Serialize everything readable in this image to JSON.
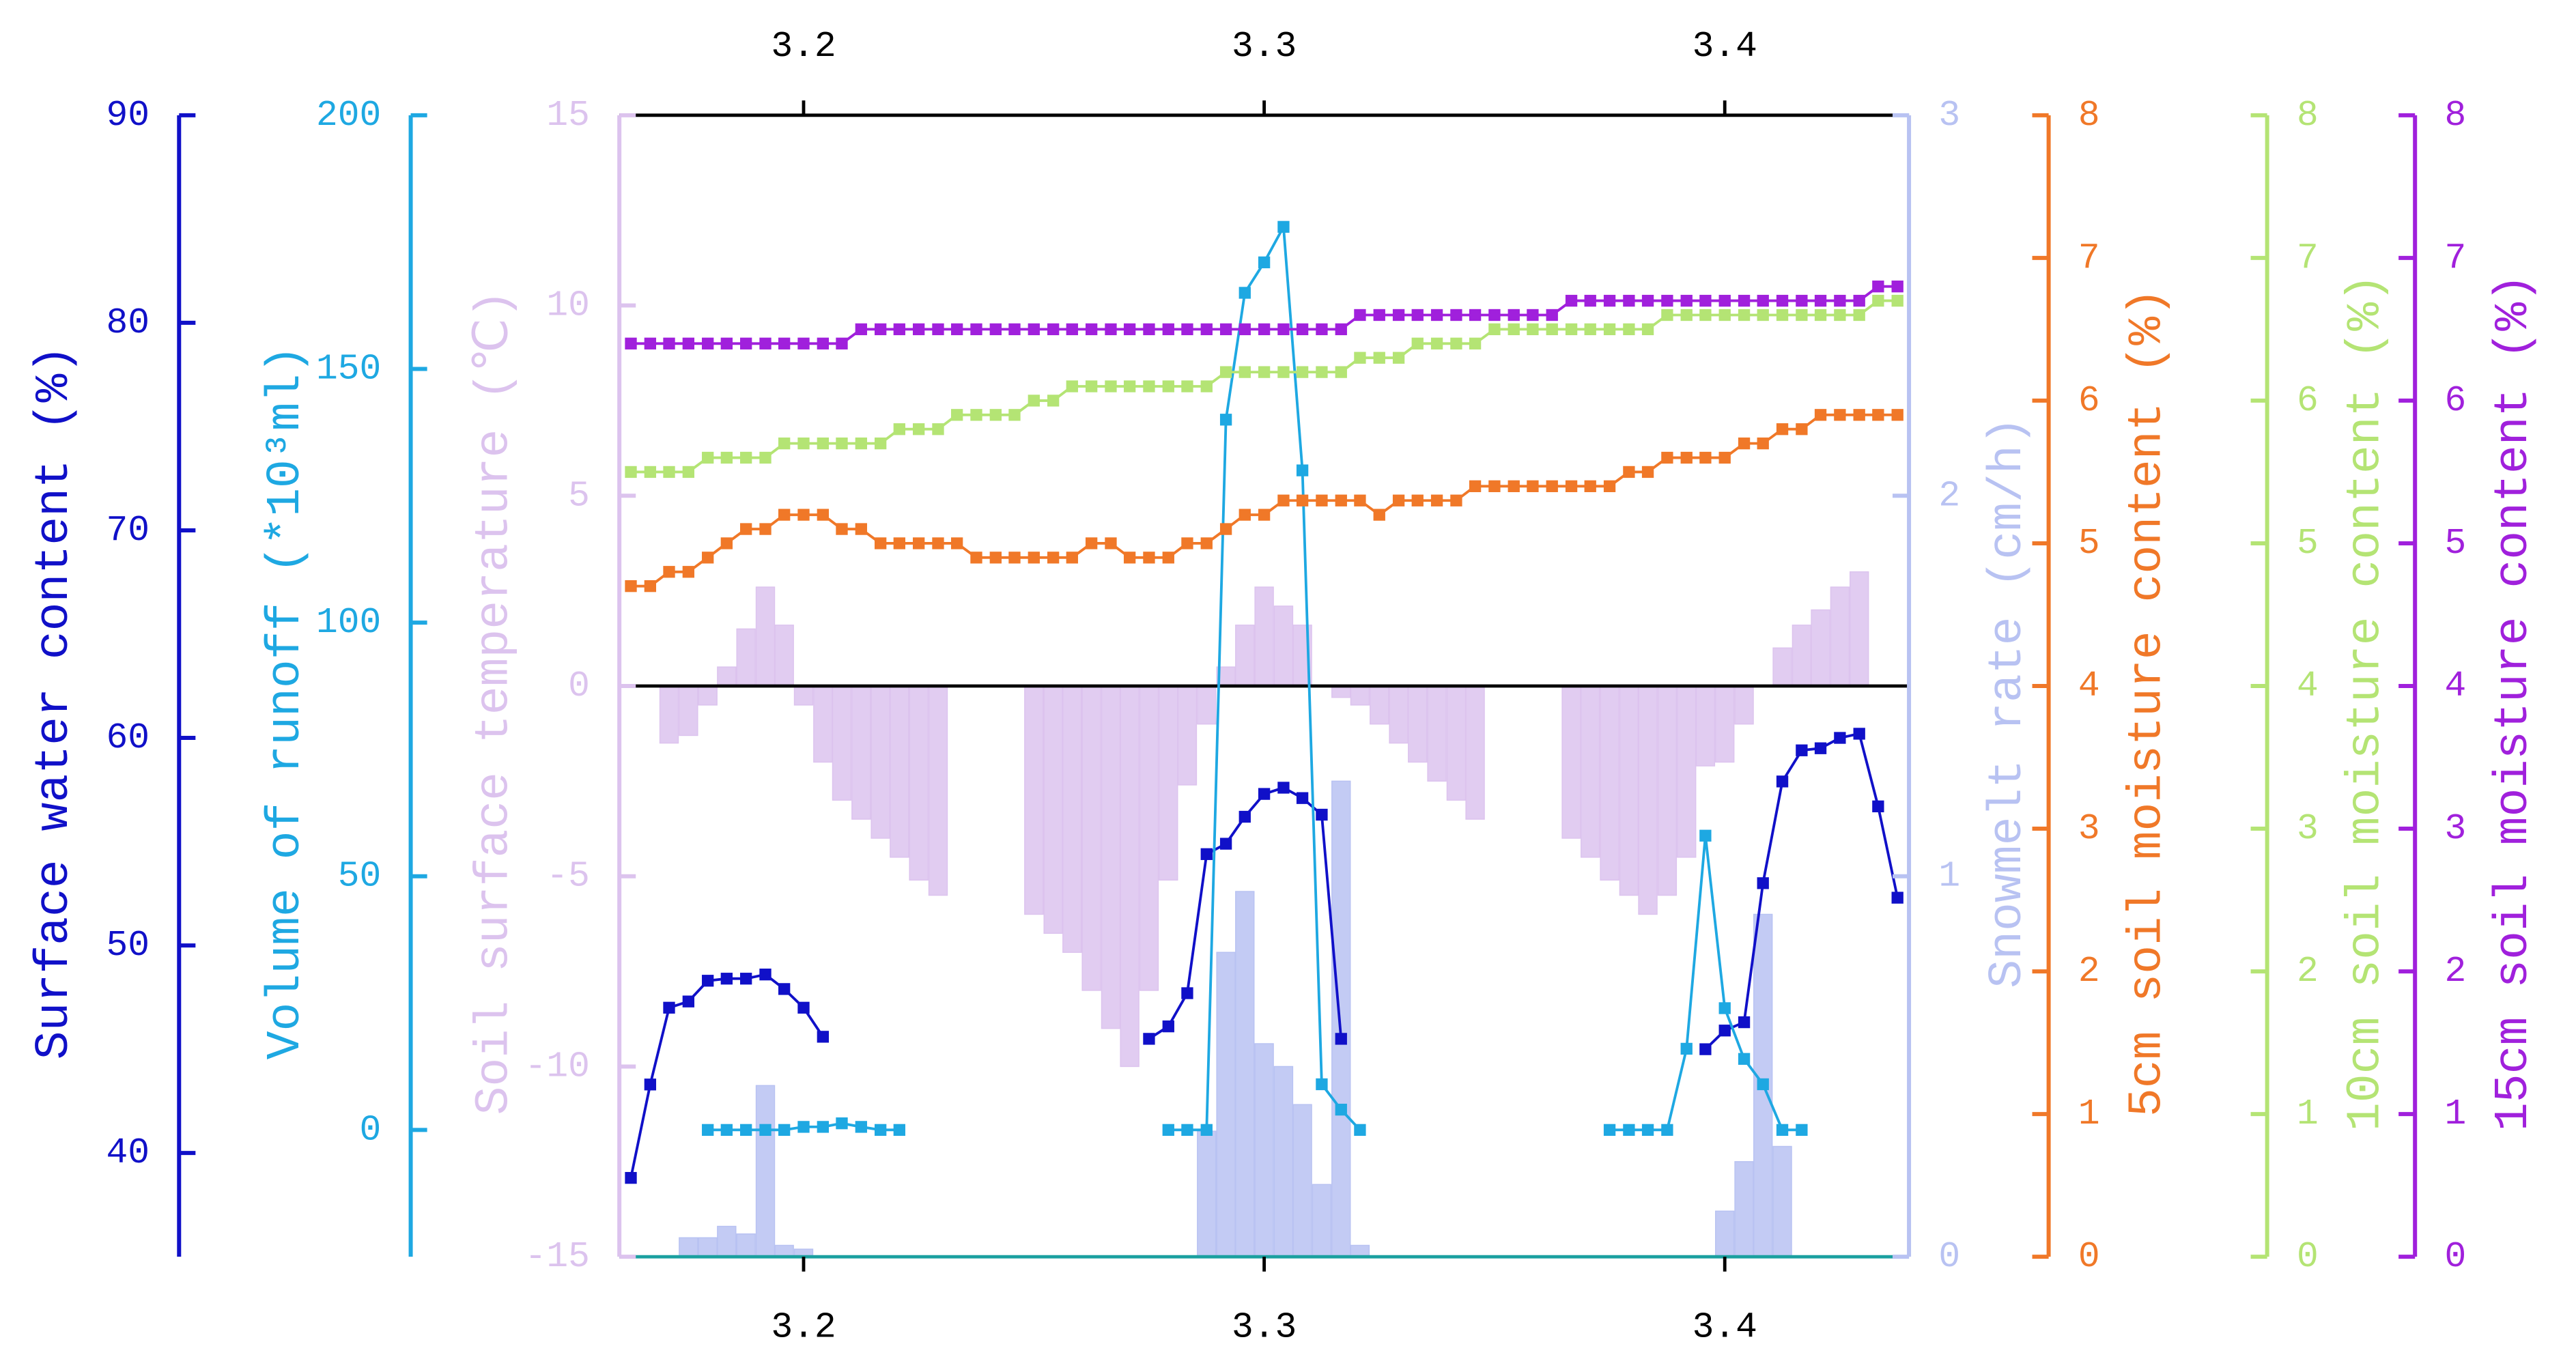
{
  "chart_data": {
    "type": "combo",
    "xlim": [
      3.16,
      3.44
    ],
    "xticks": [
      3.2,
      3.3,
      3.4
    ],
    "x": [
      3.1625,
      3.1667,
      3.1708,
      3.175,
      3.1792,
      3.1833,
      3.1875,
      3.1917,
      3.1958,
      3.2,
      3.2042,
      3.2083,
      3.2125,
      3.2167,
      3.2208,
      3.225,
      3.2292,
      3.2333,
      3.2375,
      3.2417,
      3.2458,
      3.25,
      3.2542,
      3.2583,
      3.2625,
      3.2667,
      3.2708,
      3.275,
      3.2792,
      3.2833,
      3.2875,
      3.2917,
      3.2958,
      3.3,
      3.3042,
      3.3083,
      3.3125,
      3.3167,
      3.3208,
      3.325,
      3.3292,
      3.3333,
      3.3375,
      3.3417,
      3.3458,
      3.35,
      3.3542,
      3.3583,
      3.3625,
      3.3667,
      3.3708,
      3.375,
      3.3792,
      3.3833,
      3.3875,
      3.3917,
      3.3958,
      3.4,
      3.4042,
      3.4083,
      3.4125,
      3.4167,
      3.4208,
      3.425,
      3.4292,
      3.4333,
      3.4375
    ],
    "series": [
      {
        "name": "Surface water content (%)",
        "type": "line",
        "color": "#1010c8",
        "ylim": [
          35,
          90
        ],
        "yticks": [
          40,
          50,
          60,
          70,
          80,
          90
        ],
        "values": [
          38.8,
          43.3,
          47.0,
          47.3,
          48.3,
          48.4,
          48.4,
          48.6,
          47.9,
          47.0,
          45.6,
          null,
          null,
          null,
          null,
          null,
          null,
          null,
          null,
          null,
          null,
          null,
          null,
          null,
          null,
          null,
          null,
          45.5,
          46.1,
          47.7,
          54.4,
          54.9,
          56.2,
          57.3,
          57.6,
          57.1,
          56.3,
          45.5,
          null,
          null,
          null,
          null,
          null,
          null,
          null,
          null,
          null,
          null,
          null,
          null,
          null,
          null,
          null,
          null,
          null,
          null,
          45.0,
          45.9,
          46.3,
          53.0,
          57.9,
          59.4,
          59.5,
          60.0,
          60.2,
          56.7,
          52.3
        ]
      },
      {
        "name": "Volume of runoff (*10³ml)",
        "type": "line",
        "color": "#1ea8e2",
        "ylim": [
          -25,
          200
        ],
        "yticks": [
          0,
          50,
          100,
          150,
          200
        ],
        "values": [
          null,
          null,
          null,
          null,
          0,
          0,
          0,
          0,
          0,
          0.6,
          0.6,
          1.3,
          0.6,
          0,
          0,
          null,
          null,
          null,
          null,
          null,
          null,
          null,
          null,
          null,
          null,
          null,
          null,
          null,
          0,
          0,
          0,
          140,
          165,
          171,
          178,
          130,
          9,
          4,
          0,
          null,
          null,
          null,
          null,
          null,
          null,
          null,
          null,
          null,
          null,
          null,
          null,
          0,
          0,
          0,
          0,
          16,
          58,
          24,
          14,
          9,
          0,
          0,
          null,
          null,
          null,
          null,
          null
        ]
      },
      {
        "name": "Soil surface temperature (℃)",
        "type": "bar",
        "color": "#dcc3ee",
        "ylim": [
          -15,
          15
        ],
        "yticks": [
          -15,
          -10,
          -5,
          0,
          5,
          10,
          15
        ],
        "values": [
          null,
          null,
          -1.5,
          -1.3,
          -0.5,
          0.5,
          1.5,
          2.6,
          1.6,
          -0.5,
          -2.0,
          -3.0,
          -3.5,
          -4.0,
          -4.5,
          -5.1,
          -5.5,
          null,
          null,
          null,
          null,
          -6.0,
          -6.5,
          -7.0,
          -8.0,
          -9.0,
          -10.0,
          -8.0,
          -5.1,
          -2.6,
          -1.0,
          0.5,
          1.6,
          2.6,
          2.1,
          1.6,
          null,
          -0.3,
          -0.5,
          -1.0,
          -1.5,
          -2.0,
          -2.5,
          -3.0,
          -3.5,
          null,
          null,
          null,
          null,
          -4.0,
          -4.5,
          -5.1,
          -5.5,
          -6.0,
          -5.5,
          -4.5,
          -2.1,
          -2.0,
          -1.0,
          null,
          1.0,
          1.6,
          2.0,
          2.6,
          3.0,
          null,
          null
        ]
      },
      {
        "name": "Snowmelt rate (cm/h)",
        "type": "bar",
        "color": "#b8c2f2",
        "ylim": [
          0,
          3
        ],
        "yticks": [
          0,
          1,
          2,
          3
        ],
        "values": [
          null,
          null,
          null,
          0.05,
          0.05,
          0.08,
          0.06,
          0.45,
          0.03,
          0.02,
          null,
          null,
          null,
          null,
          null,
          null,
          null,
          null,
          null,
          null,
          null,
          null,
          null,
          null,
          null,
          null,
          null,
          null,
          null,
          null,
          0.33,
          0.8,
          0.96,
          0.56,
          0.5,
          0.4,
          0.19,
          1.25,
          0.03,
          null,
          null,
          null,
          null,
          null,
          null,
          null,
          null,
          null,
          null,
          null,
          null,
          null,
          null,
          null,
          null,
          null,
          null,
          0.12,
          0.25,
          0.9,
          0.29,
          null,
          null,
          null,
          null,
          null,
          null
        ]
      },
      {
        "name": "5cm soil moisture content (%)",
        "type": "line",
        "color": "#f07828",
        "ylim": [
          0,
          8
        ],
        "yticks": [
          0,
          1,
          2,
          3,
          4,
          5,
          6,
          7,
          8
        ],
        "values": [
          4.7,
          4.7,
          4.8,
          4.8,
          4.9,
          5.0,
          5.1,
          5.1,
          5.2,
          5.2,
          5.2,
          5.1,
          5.1,
          5.0,
          5.0,
          5.0,
          5.0,
          5.0,
          4.9,
          4.9,
          4.9,
          4.9,
          4.9,
          4.9,
          5.0,
          5.0,
          4.9,
          4.9,
          4.9,
          5.0,
          5.0,
          5.1,
          5.2,
          5.2,
          5.3,
          5.3,
          5.3,
          5.3,
          5.3,
          5.2,
          5.3,
          5.3,
          5.3,
          5.3,
          5.4,
          5.4,
          5.4,
          5.4,
          5.4,
          5.4,
          5.4,
          5.4,
          5.5,
          5.5,
          5.6,
          5.6,
          5.6,
          5.6,
          5.7,
          5.7,
          5.8,
          5.8,
          5.9,
          5.9,
          5.9,
          5.9,
          5.9
        ]
      },
      {
        "name": "10cm soil moisture content (%)",
        "type": "line",
        "color": "#b4e474",
        "ylim": [
          0,
          8
        ],
        "yticks": [
          0,
          1,
          2,
          3,
          4,
          5,
          6,
          7,
          8
        ],
        "values": [
          5.5,
          5.5,
          5.5,
          5.5,
          5.6,
          5.6,
          5.6,
          5.6,
          5.7,
          5.7,
          5.7,
          5.7,
          5.7,
          5.7,
          5.8,
          5.8,
          5.8,
          5.9,
          5.9,
          5.9,
          5.9,
          6.0,
          6.0,
          6.1,
          6.1,
          6.1,
          6.1,
          6.1,
          6.1,
          6.1,
          6.1,
          6.2,
          6.2,
          6.2,
          6.2,
          6.2,
          6.2,
          6.2,
          6.3,
          6.3,
          6.3,
          6.4,
          6.4,
          6.4,
          6.4,
          6.5,
          6.5,
          6.5,
          6.5,
          6.5,
          6.5,
          6.5,
          6.5,
          6.5,
          6.6,
          6.6,
          6.6,
          6.6,
          6.6,
          6.6,
          6.6,
          6.6,
          6.6,
          6.6,
          6.6,
          6.7,
          6.7
        ]
      },
      {
        "name": "15cm soil moisture content (%)",
        "type": "line",
        "color": "#a020dc",
        "ylim": [
          0,
          8
        ],
        "yticks": [
          0,
          1,
          2,
          3,
          4,
          5,
          6,
          7,
          8
        ],
        "values": [
          6.4,
          6.4,
          6.4,
          6.4,
          6.4,
          6.4,
          6.4,
          6.4,
          6.4,
          6.4,
          6.4,
          6.4,
          6.5,
          6.5,
          6.5,
          6.5,
          6.5,
          6.5,
          6.5,
          6.5,
          6.5,
          6.5,
          6.5,
          6.5,
          6.5,
          6.5,
          6.5,
          6.5,
          6.5,
          6.5,
          6.5,
          6.5,
          6.5,
          6.5,
          6.5,
          6.5,
          6.5,
          6.5,
          6.6,
          6.6,
          6.6,
          6.6,
          6.6,
          6.6,
          6.6,
          6.6,
          6.6,
          6.6,
          6.6,
          6.7,
          6.7,
          6.7,
          6.7,
          6.7,
          6.7,
          6.7,
          6.7,
          6.7,
          6.7,
          6.7,
          6.7,
          6.7,
          6.7,
          6.7,
          6.7,
          6.8,
          6.8
        ]
      }
    ]
  }
}
